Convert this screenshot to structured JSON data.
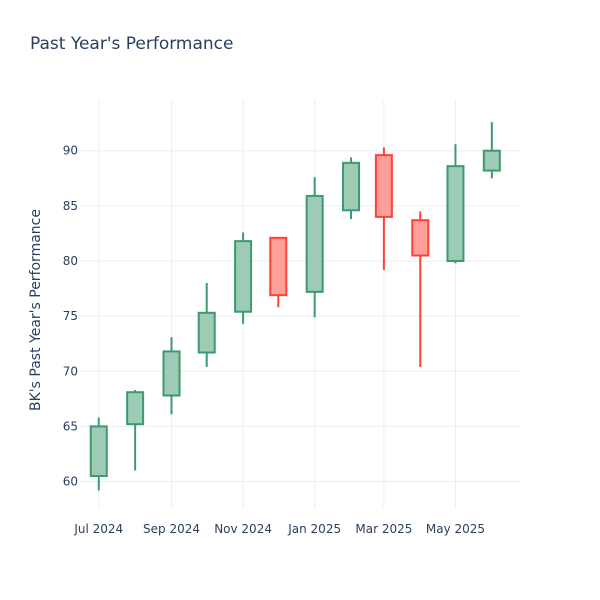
{
  "chart_data": {
    "type": "candlestick",
    "title": "Past Year's Performance",
    "xlabel": "",
    "ylabel": "BK's Past Year's Performance",
    "ylim": [
      57.6,
      94.6
    ],
    "xlim": [
      "2024-06-15",
      "2025-06-25"
    ],
    "y_ticks": [
      60,
      65,
      70,
      75,
      80,
      85,
      90
    ],
    "x_ticks": [
      {
        "date": "2024-07-01",
        "label": "Jul 2024"
      },
      {
        "date": "2024-09-01",
        "label": "Sep 2024"
      },
      {
        "date": "2024-11-01",
        "label": "Nov 2024"
      },
      {
        "date": "2025-01-01",
        "label": "Jan 2025"
      },
      {
        "date": "2025-03-01",
        "label": "Mar 2025"
      },
      {
        "date": "2025-05-01",
        "label": "May 2025"
      }
    ],
    "grid": true,
    "colors": {
      "increasing": "#3d9970",
      "increasing_fill": "#9ecbb6",
      "decreasing": "#ff4136",
      "decreasing_fill": "#ff9f9a",
      "grid": "#ebedf0",
      "text": "#2a3f5f"
    },
    "candles": [
      {
        "date": "2024-07-01",
        "open": 60.5,
        "high": 65.8,
        "low": 59.2,
        "close": 65.0
      },
      {
        "date": "2024-08-01",
        "open": 65.2,
        "high": 68.3,
        "low": 61.0,
        "close": 68.1
      },
      {
        "date": "2024-09-01",
        "open": 67.8,
        "high": 73.1,
        "low": 66.1,
        "close": 71.8
      },
      {
        "date": "2024-10-01",
        "open": 71.7,
        "high": 78.0,
        "low": 70.4,
        "close": 75.3
      },
      {
        "date": "2024-11-01",
        "open": 75.4,
        "high": 82.6,
        "low": 74.3,
        "close": 81.8
      },
      {
        "date": "2024-12-01",
        "open": 82.1,
        "high": 82.1,
        "low": 75.8,
        "close": 76.9
      },
      {
        "date": "2025-01-01",
        "open": 77.2,
        "high": 87.6,
        "low": 74.9,
        "close": 85.9
      },
      {
        "date": "2025-02-01",
        "open": 84.6,
        "high": 89.4,
        "low": 83.8,
        "close": 88.9
      },
      {
        "date": "2025-03-01",
        "open": 89.6,
        "high": 90.3,
        "low": 79.2,
        "close": 84.0
      },
      {
        "date": "2025-04-01",
        "open": 83.7,
        "high": 84.5,
        "low": 70.4,
        "close": 80.5
      },
      {
        "date": "2025-05-01",
        "open": 80.0,
        "high": 90.6,
        "low": 79.8,
        "close": 88.6
      },
      {
        "date": "2025-06-01",
        "open": 88.2,
        "high": 92.6,
        "low": 87.5,
        "close": 90.0
      }
    ]
  }
}
